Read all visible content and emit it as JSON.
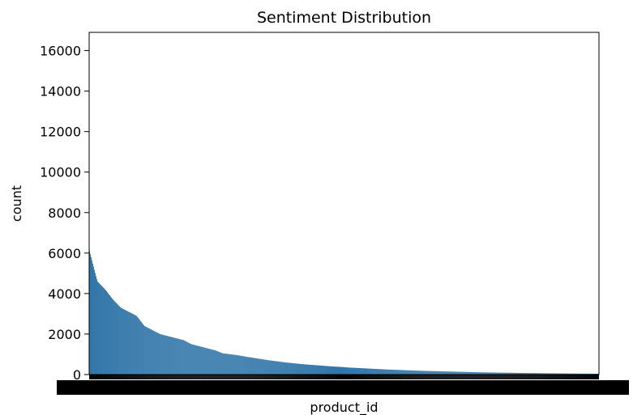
{
  "chart_data": {
    "type": "bar",
    "title": "Sentiment Distribution",
    "xlabel": "product_id",
    "ylabel": "count",
    "ylim": [
      0,
      16900
    ],
    "yticks": [
      0,
      2000,
      4000,
      6000,
      8000,
      10000,
      12000,
      14000,
      16000
    ],
    "bar_color": "#2f74a8",
    "grid": false,
    "x_tick_labels": "illegible (overlapping product_id labels)",
    "sampled_values": [
      6100,
      4600,
      4200,
      3700,
      3300,
      3100,
      2900,
      2400,
      2200,
      2000,
      1900,
      1800,
      1700,
      1500,
      1400,
      1300,
      1200,
      1050,
      1000,
      950,
      880,
      820,
      760,
      700,
      650,
      600,
      560,
      520,
      490,
      460,
      430,
      400,
      380,
      350,
      330,
      310,
      290,
      270,
      250,
      235,
      220,
      205,
      190,
      180,
      170,
      160,
      150,
      140,
      130,
      120,
      112,
      105,
      98,
      92,
      86,
      80,
      75,
      70,
      65,
      60,
      56,
      52,
      48,
      45,
      42,
      39
    ]
  }
}
